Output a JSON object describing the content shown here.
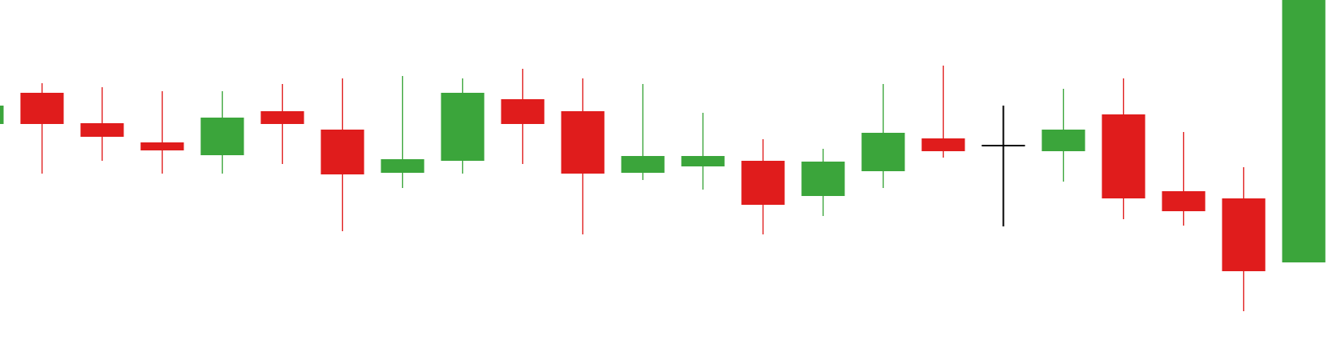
{
  "colors": {
    "background": "#ffffff",
    "up": "#3ba53b",
    "down": "#e01c1c",
    "doji": "#000000"
  },
  "chart_data": {
    "type": "candlestick",
    "axes_visible": false,
    "grid": false,
    "legend": "none",
    "ylim": [
      0,
      445
    ],
    "candles": [
      {
        "open": 290,
        "close": 313,
        "high": 313,
        "low": 290
      },
      {
        "open": 329,
        "close": 290,
        "high": 341,
        "low": 228
      },
      {
        "open": 291,
        "close": 274,
        "high": 336,
        "low": 244
      },
      {
        "open": 267,
        "close": 257,
        "high": 331,
        "low": 228
      },
      {
        "open": 251,
        "close": 298,
        "high": 331,
        "low": 228
      },
      {
        "open": 306,
        "close": 290,
        "high": 340,
        "low": 240
      },
      {
        "open": 283,
        "close": 227,
        "high": 347,
        "low": 156
      },
      {
        "open": 229,
        "close": 246,
        "high": 350,
        "low": 210
      },
      {
        "open": 244,
        "close": 329,
        "high": 347,
        "low": 228
      },
      {
        "open": 321,
        "close": 290,
        "high": 359,
        "low": 240
      },
      {
        "open": 306,
        "close": 228,
        "high": 347,
        "low": 152
      },
      {
        "open": 229,
        "close": 250,
        "high": 340,
        "low": 220
      },
      {
        "open": 237,
        "close": 250,
        "high": 304,
        "low": 208
      },
      {
        "open": 244,
        "close": 189,
        "high": 271,
        "low": 152
      },
      {
        "open": 200,
        "close": 243,
        "high": 259,
        "low": 175
      },
      {
        "open": 231,
        "close": 279,
        "high": 340,
        "low": 210
      },
      {
        "open": 272,
        "close": 256,
        "high": 363,
        "low": 248
      },
      {
        "open": 263,
        "close": 263,
        "high": 313,
        "low": 162
      },
      {
        "open": 256,
        "close": 283,
        "high": 334,
        "low": 218
      },
      {
        "open": 302,
        "close": 197,
        "high": 347,
        "low": 171
      },
      {
        "open": 206,
        "close": 181,
        "high": 280,
        "low": 163
      },
      {
        "open": 197,
        "close": 106,
        "high": 236,
        "low": 56
      },
      {
        "open": 117,
        "close": 445,
        "high": 445,
        "low": 117
      }
    ]
  }
}
